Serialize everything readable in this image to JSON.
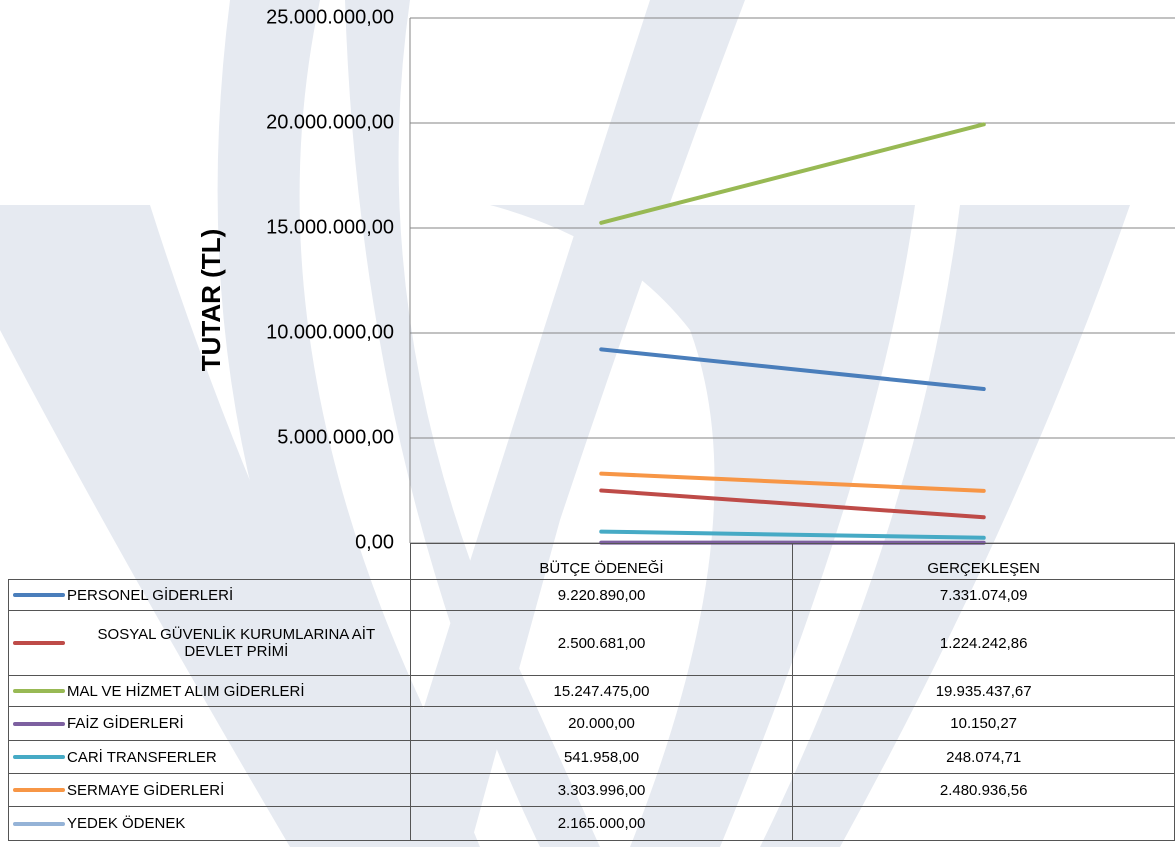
{
  "chart_data": {
    "type": "line",
    "y_axis_label": "TUTAR (TL)",
    "categories": [
      "BÜTÇE ÖDENEĞİ",
      "GERÇEKLEŞEN"
    ],
    "series": [
      {
        "name": "PERSONEL GİDERLERİ",
        "color": "#4a7ebb",
        "values": [
          9220890.0,
          7331074.09
        ],
        "value_labels": [
          "9.220.890,00",
          "7.331.074,09"
        ]
      },
      {
        "name": "SOSYAL GÜVENLİK KURUMLARINA AİT DEVLET PRİMİ",
        "color": "#be4b48",
        "values": [
          2500681.0,
          1224242.86
        ],
        "value_labels": [
          "2.500.681,00",
          "1.224.242,86"
        ]
      },
      {
        "name": "MAL VE HİZMET ALIM GİDERLERİ",
        "color": "#98b954",
        "values": [
          15247475.0,
          19935437.67
        ],
        "value_labels": [
          "15.247.475,00",
          "19.935.437,67"
        ]
      },
      {
        "name": "FAİZ GİDERLERİ",
        "color": "#7d60a0",
        "values": [
          20000.0,
          10150.27
        ],
        "value_labels": [
          "20.000,00",
          "10.150,27"
        ]
      },
      {
        "name": "CARİ TRANSFERLER",
        "color": "#46aac5",
        "values": [
          541958.0,
          248074.71
        ],
        "value_labels": [
          "541.958,00",
          "248.074,71"
        ]
      },
      {
        "name": "SERMAYE GİDERLERİ",
        "color": "#f79646",
        "values": [
          3303996.0,
          2480936.56
        ],
        "value_labels": [
          "3.303.996,00",
          "2.480.936,56"
        ]
      },
      {
        "name": "YEDEK ÖDENEK",
        "color": "#95b3d7",
        "values": [
          2165000.0,
          null
        ],
        "value_labels": [
          "2.165.000,00",
          null
        ]
      }
    ],
    "ylim": [
      0,
      25000000
    ],
    "yticks": [
      {
        "value": 0,
        "label": "0,00"
      },
      {
        "value": 5000000,
        "label": "5.000.000,00"
      },
      {
        "value": 10000000,
        "label": "10.000.000,00"
      },
      {
        "value": 15000000,
        "label": "15.000.000,00"
      },
      {
        "value": 20000000,
        "label": "20.000.000,00"
      },
      {
        "value": 25000000,
        "label": "25.000.000,00"
      }
    ],
    "grid": true
  }
}
